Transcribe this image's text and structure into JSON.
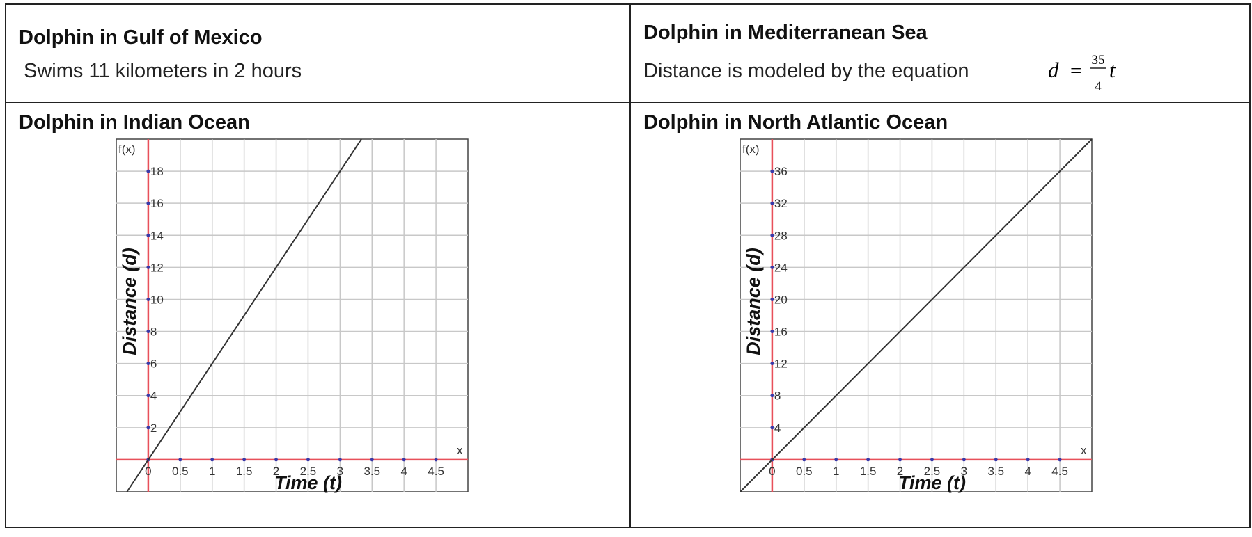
{
  "table": {
    "rows": [
      [
        {
          "title": "Dolphin in Gulf of Mexico",
          "text": "Swims 11 kilometers in 2 hours"
        },
        {
          "title": "Dolphin in Mediterranean Sea",
          "text": "Distance is modeled by the equation",
          "equation": {
            "lhs": "d",
            "relation": "=",
            "numerator": "35",
            "denominator": "4",
            "variable": "t"
          }
        }
      ],
      [
        {
          "title": "Dolphin in Indian Ocean",
          "chart": {
            "type": "line",
            "y_axis_name": "f(x)",
            "x_axis_name": "x",
            "xlabel": "Time (t)",
            "ylabel": "Distance (d)",
            "xlim": [
              -0.5,
              5
            ],
            "ylim": [
              -2,
              20
            ],
            "xticks": [
              0,
              0.5,
              1,
              1.5,
              2,
              2.5,
              3,
              3.5,
              4,
              4.5
            ],
            "yticks": [
              0,
              2,
              4,
              6,
              8,
              10,
              12,
              14,
              16,
              18
            ],
            "grid": true,
            "slope": 6,
            "color": "#333333",
            "axis_color": "#e8505a"
          }
        },
        {
          "title": "Dolphin in North Atlantic Ocean",
          "chart": {
            "type": "line",
            "y_axis_name": "f(x)",
            "x_axis_name": "x",
            "xlabel": "Time (t)",
            "ylabel": "Distance (d)",
            "xlim": [
              -0.5,
              5
            ],
            "ylim": [
              -4,
              40
            ],
            "xticks": [
              0,
              0.5,
              1,
              1.5,
              2,
              2.5,
              3,
              3.5,
              4,
              4.5
            ],
            "yticks": [
              0,
              4,
              8,
              12,
              16,
              20,
              24,
              28,
              32,
              36
            ],
            "grid": true,
            "slope": 8,
            "color": "#333333",
            "axis_color": "#e8505a"
          }
        }
      ]
    ]
  }
}
